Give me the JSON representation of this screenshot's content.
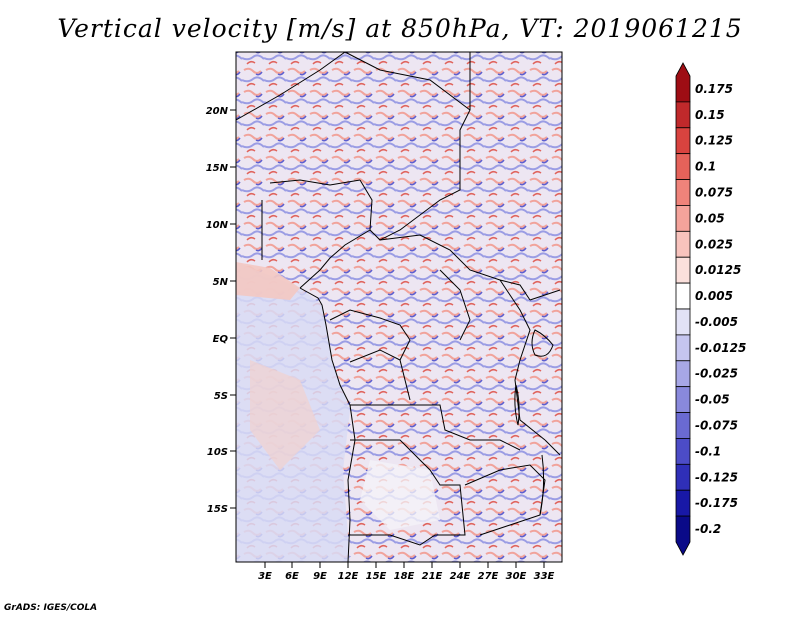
{
  "title": "Vertical velocity [m/s] at 850hPa, VT: 2019061215",
  "credit": "GrADS: IGES/COLA",
  "lat_ticks": [
    "20N",
    "15N",
    "10N",
    "5N",
    "EQ",
    "5S",
    "10S",
    "15S"
  ],
  "lon_ticks": [
    "3E",
    "6E",
    "9E",
    "12E",
    "15E",
    "18E",
    "21E",
    "24E",
    "27E",
    "30E",
    "33E"
  ],
  "colorbar": {
    "levels": [
      "0.175",
      "0.15",
      "0.125",
      "0.1",
      "0.075",
      "0.05",
      "0.025",
      "0.0125",
      "0.005",
      "-0.005",
      "-0.0125",
      "-0.025",
      "-0.05",
      "-0.075",
      "-0.1",
      "-0.125",
      "-0.175",
      "-0.2"
    ],
    "colors": [
      "#9e0d14",
      "#c0292b",
      "#d9433f",
      "#e5625a",
      "#ef837a",
      "#f4a39b",
      "#f8c3bd",
      "#fbe0dc",
      "#ffffff",
      "#e2e2f6",
      "#c5c5ef",
      "#a7a7e6",
      "#8989dc",
      "#6a6ad2",
      "#4c4cc7",
      "#2f2fb8",
      "#1818a6",
      "#0a0a88"
    ]
  },
  "palette": {
    "ocean_red": "#f6d3cf",
    "ocean_blue": "#d8dbf4",
    "border": "#000000"
  }
}
